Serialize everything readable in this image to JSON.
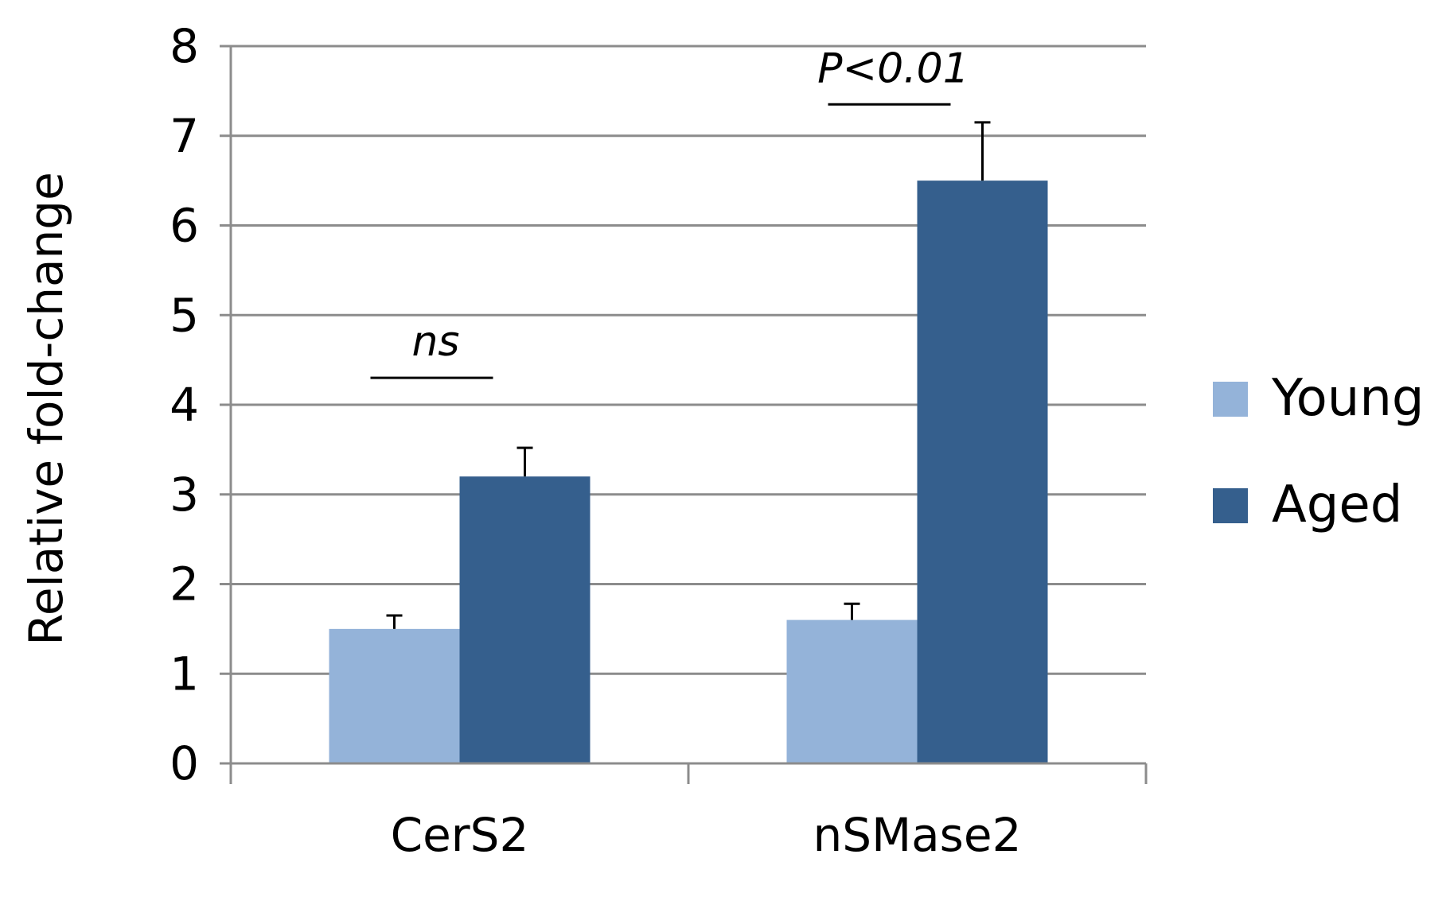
{
  "chart_data": {
    "type": "bar",
    "title": "",
    "xlabel": "",
    "ylabel": "Relative fold-change",
    "ylim": [
      0,
      8
    ],
    "yticks": [
      0,
      1,
      2,
      3,
      4,
      5,
      6,
      7,
      8
    ],
    "grid": true,
    "legend_position": "right",
    "categories": [
      "CerS2",
      "nSMase2"
    ],
    "series": [
      {
        "name": "Young",
        "color": "#94b3d9",
        "values": [
          1.5,
          1.6
        ],
        "errors": [
          0.15,
          0.18
        ]
      },
      {
        "name": "Aged",
        "color": "#355f8d",
        "values": [
          3.2,
          6.5
        ],
        "errors": [
          0.32,
          0.65
        ]
      }
    ],
    "annotations": [
      {
        "text": "ns",
        "category": "CerS2",
        "level": 4.3
      },
      {
        "text": "P<0.01",
        "category": "nSMase2",
        "level": 7.35
      }
    ]
  }
}
